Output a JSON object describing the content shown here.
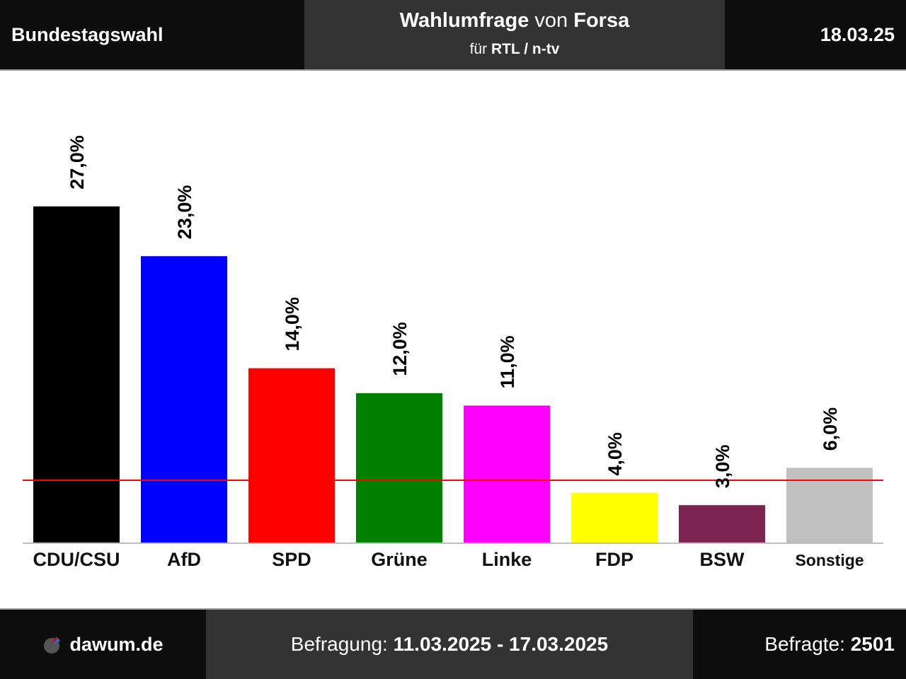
{
  "header": {
    "left_title": "Bundestagswahl",
    "center_title_word1": "Wahlumfrage",
    "center_title_word2": "von",
    "center_title_word3": "Forsa",
    "center_sub_prefix": "für",
    "center_sub_client": "RTL / n-tv",
    "date": "18.03.25"
  },
  "footer": {
    "logo_icon": "dawum-logo-icon",
    "site": "dawum.de",
    "period_label": "Befragung:",
    "period_value": "11.03.2025 - 17.03.2025",
    "respondents_label": "Befragte:",
    "respondents_value": "2501"
  },
  "chart_data": {
    "type": "bar",
    "categories": [
      "CDU/CSU",
      "AfD",
      "SPD",
      "Grüne",
      "Linke",
      "FDP",
      "BSW",
      "Sonstige"
    ],
    "values": [
      27.0,
      23.0,
      14.0,
      12.0,
      11.0,
      4.0,
      3.0,
      6.0
    ],
    "value_labels": [
      "27,0%",
      "23,0%",
      "14,0%",
      "12,0%",
      "11,0%",
      "4,0%",
      "3,0%",
      "6,0%"
    ],
    "colors": [
      "#000000",
      "#0000ff",
      "#ff0000",
      "#008000",
      "#ff00ff",
      "#ffff00",
      "#7b2450",
      "#c0c0c0"
    ],
    "threshold": 5.0,
    "threshold_color": "#ff0000",
    "ylim": [
      0,
      30
    ],
    "grid": false,
    "title": "",
    "xlabel": "",
    "ylabel": ""
  }
}
